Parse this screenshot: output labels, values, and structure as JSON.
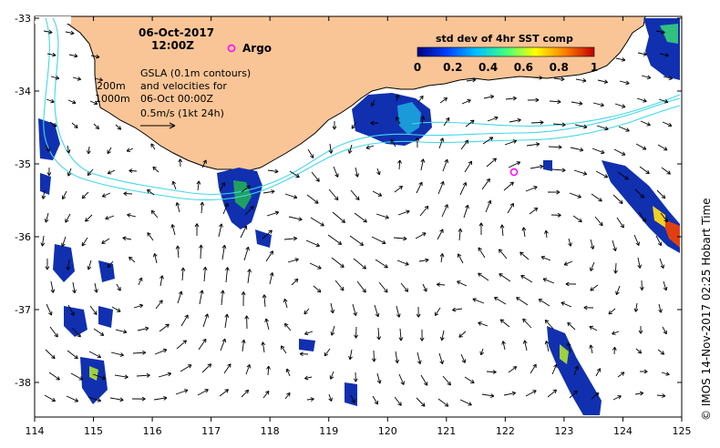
{
  "header": {
    "date": "06-Oct-2017",
    "time": "12:00Z",
    "argo_label": "Argo"
  },
  "notes": {
    "depth_200": "200m",
    "depth_1000": "1000m",
    "line1": "GSLA (0.1m contours)",
    "line2": "and velocities for",
    "line3": "06-Oct 00:00Z",
    "line4": "0.5m/s (1kt 24h)"
  },
  "colorbar": {
    "title": "std dev of 4hr SST comp",
    "ticks": [
      "0",
      "0.2",
      "0.4",
      "0.6",
      "0.8",
      "1"
    ],
    "stops": [
      "#000080",
      "#0040ff",
      "#00c0ff",
      "#40ff80",
      "#ffff00",
      "#ff8000",
      "#c00000"
    ]
  },
  "axes": {
    "lon_ticks": [
      "114",
      "115",
      "116",
      "117",
      "118",
      "119",
      "120",
      "121",
      "122",
      "123",
      "124",
      "125"
    ],
    "lat_ticks": [
      "-33",
      "-34",
      "-35",
      "-36",
      "-37",
      "-38"
    ]
  },
  "credit": "© IMOS 14-Nov-2017 02:25 Hobart Time",
  "colors": {
    "land": "#f9c596",
    "contour": "#40d8e8",
    "argo": "#ff00ff",
    "arrow": "#000000"
  }
}
